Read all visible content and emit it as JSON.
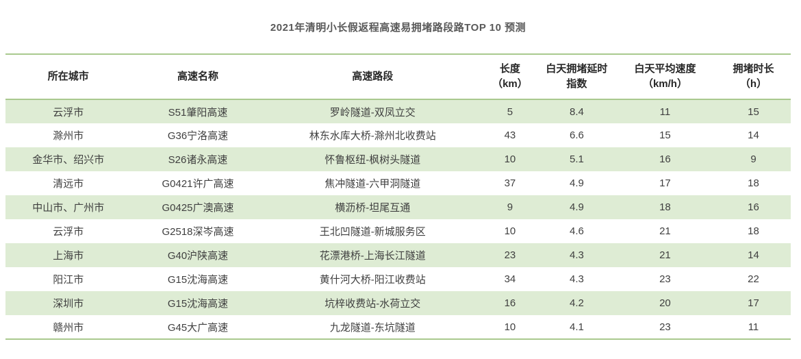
{
  "title": "2021年清明小长假返程高速易拥堵路段路TOP 10 预测",
  "colors": {
    "border_green": "#a9c98e",
    "band_green": "#deecd4",
    "title_gray": "#595959",
    "cell_text": "#3f3f3f"
  },
  "table": {
    "columns": [
      {
        "label": "所在城市"
      },
      {
        "label": "高速名称"
      },
      {
        "label": "高速路段"
      },
      {
        "label": "长度\n（km）"
      },
      {
        "label": "白天拥堵延时\n指数"
      },
      {
        "label": "白天平均速度\n（km/h）"
      },
      {
        "label": "拥堵时长\n（h）"
      }
    ],
    "rows": [
      [
        "云浮市",
        "S51肇阳高速",
        "罗岭隧道-双凤立交",
        "5",
        "8.4",
        "11",
        "15"
      ],
      [
        "滁州市",
        "G36宁洛高速",
        "林东水库大桥-滁州北收费站",
        "43",
        "6.6",
        "15",
        "14"
      ],
      [
        "金华市、绍兴市",
        "S26诸永高速",
        "怀鲁枢纽-枫树头隧道",
        "10",
        "5.1",
        "16",
        "9"
      ],
      [
        "清远市",
        "G0421许广高速",
        "焦冲隧道-六甲洞隧道",
        "37",
        "4.9",
        "17",
        "18"
      ],
      [
        "中山市、广州市",
        "G0425广澳高速",
        "横沥桥-坦尾互通",
        "9",
        "4.9",
        "18",
        "16"
      ],
      [
        "云浮市",
        "G2518深岑高速",
        "王北凹隧道-新城服务区",
        "10",
        "4.6",
        "21",
        "18"
      ],
      [
        "上海市",
        "G40沪陕高速",
        "花漂港桥-上海长江隧道",
        "23",
        "4.3",
        "21",
        "14"
      ],
      [
        "阳江市",
        "G15沈海高速",
        "黄什河大桥-阳江收费站",
        "34",
        "4.3",
        "23",
        "22"
      ],
      [
        "深圳市",
        "G15沈海高速",
        "坑梓收费站-水荷立交",
        "16",
        "4.2",
        "20",
        "17"
      ],
      [
        "赣州市",
        "G45大广高速",
        "九龙隧道-东坑隧道",
        "10",
        "4.1",
        "23",
        "11"
      ]
    ]
  },
  "chart_data": {
    "type": "table",
    "title": "2021年清明小长假返程高速易拥堵路段路TOP 10 预测",
    "columns": [
      "所在城市",
      "高速名称",
      "高速路段",
      "长度（km）",
      "白天拥堵延时指数",
      "白天平均速度（km/h）",
      "拥堵时长（h）"
    ],
    "rows": [
      [
        "云浮市",
        "S51肇阳高速",
        "罗岭隧道-双凤立交",
        5,
        8.4,
        11,
        15
      ],
      [
        "滁州市",
        "G36宁洛高速",
        "林东水库大桥-滁州北收费站",
        43,
        6.6,
        15,
        14
      ],
      [
        "金华市、绍兴市",
        "S26诸永高速",
        "怀鲁枢纽-枫树头隧道",
        10,
        5.1,
        16,
        9
      ],
      [
        "清远市",
        "G0421许广高速",
        "焦冲隧道-六甲洞隧道",
        37,
        4.9,
        17,
        18
      ],
      [
        "中山市、广州市",
        "G0425广澳高速",
        "横沥桥-坦尾互通",
        9,
        4.9,
        18,
        16
      ],
      [
        "云浮市",
        "G2518深岑高速",
        "王北凹隧道-新城服务区",
        10,
        4.6,
        21,
        18
      ],
      [
        "上海市",
        "G40沪陕高速",
        "花漂港桥-上海长江隧道",
        23,
        4.3,
        21,
        14
      ],
      [
        "阳江市",
        "G15沈海高速",
        "黄什河大桥-阳江收费站",
        34,
        4.3,
        23,
        22
      ],
      [
        "深圳市",
        "G15沈海高速",
        "坑梓收费站-水荷立交",
        16,
        4.2,
        20,
        17
      ],
      [
        "赣州市",
        "G45大广高速",
        "九龙隧道-东坑隧道",
        10,
        4.1,
        23,
        11
      ]
    ],
    "layout_hints": {
      "banded_rows": "odd rows light green",
      "borders": "green rules above header, below header, below last row",
      "alignment": "all cells centered"
    }
  }
}
